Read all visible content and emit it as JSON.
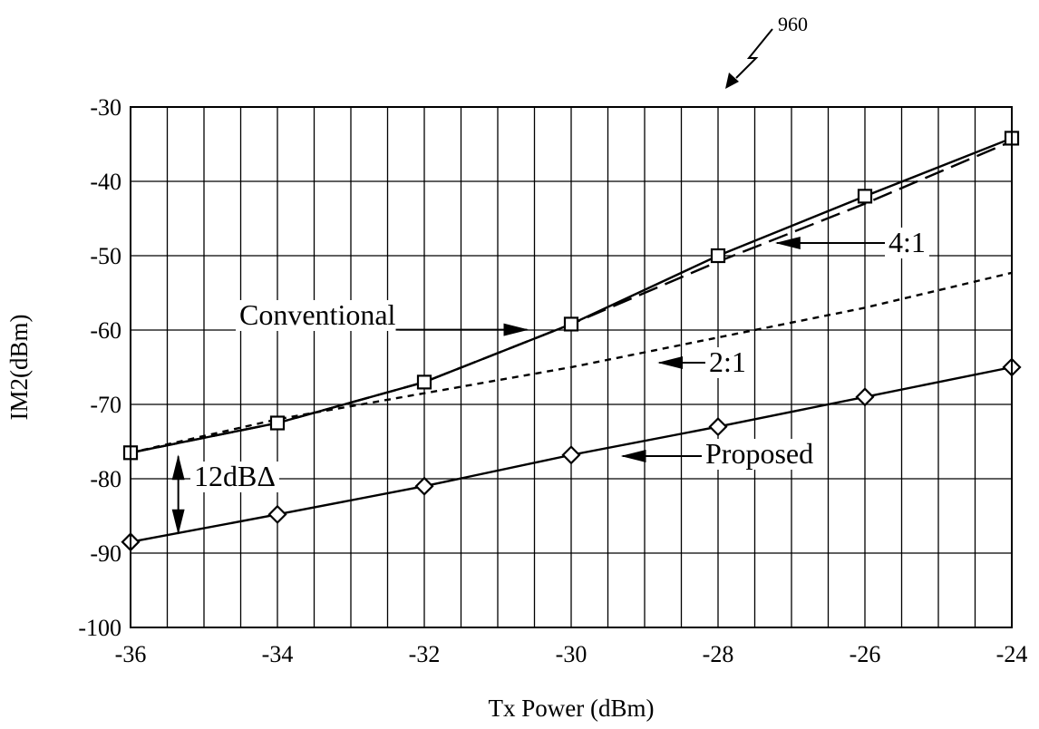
{
  "chart_data": {
    "type": "line",
    "reference_number": "960",
    "xlabel": "Tx Power (dBm)",
    "ylabel": "IM2(dBm)",
    "xlim": [
      -36,
      -24
    ],
    "ylim": [
      -100,
      -30
    ],
    "x_ticks": [
      -36,
      -34,
      -32,
      -30,
      -28,
      -26,
      -24
    ],
    "y_ticks": [
      -30,
      -40,
      -50,
      -60,
      -70,
      -80,
      -90,
      -100
    ],
    "x_minor_step": 0.5,
    "y_major_step": 10,
    "grid": true,
    "series": [
      {
        "name": "Conventional",
        "style": "solid",
        "marker": "square",
        "x": [
          -36,
          -34,
          -32,
          -30,
          -28,
          -26,
          -24
        ],
        "y": [
          -76.5,
          -72.5,
          -67,
          -59.2,
          -50,
          -42,
          -34.2
        ]
      },
      {
        "name": "4:1",
        "style": "long-dash",
        "marker": "none",
        "x": [
          -36,
          -34,
          -32,
          -30,
          -28,
          -26,
          -24
        ],
        "y": [
          -76.5,
          -72.5,
          -67,
          -59.2,
          -50.8,
          -43,
          -34.6
        ]
      },
      {
        "name": "2:1",
        "style": "short-dash",
        "marker": "none",
        "x": [
          -36,
          -34,
          -32,
          -30,
          -28,
          -26,
          -24
        ],
        "y": [
          -76.5,
          -72.0,
          -68.5,
          -65,
          -61,
          -57,
          -52.3
        ]
      },
      {
        "name": "Proposed",
        "style": "solid",
        "marker": "diamond",
        "x": [
          -36,
          -34,
          -32,
          -30,
          -28,
          -26,
          -24
        ],
        "y": [
          -88.5,
          -84.8,
          -81,
          -76.8,
          -73,
          -69,
          -65
        ]
      }
    ],
    "annotations": [
      {
        "text": "Conventional",
        "target_series": "Conventional",
        "target": [
          -30.6,
          -60.2
        ]
      },
      {
        "text": "4:1",
        "target_series": "4:1",
        "target": [
          -27.2,
          -48.9
        ]
      },
      {
        "text": "2:1",
        "target_series": "2:1",
        "target": [
          -28.8,
          -64.5
        ]
      },
      {
        "text": "Proposed",
        "target_series": "Proposed",
        "target": [
          -29.3,
          -77.3
        ]
      },
      {
        "text": "12dBΔ",
        "span_x": -35.35,
        "span_y": [
          -76.5,
          -88.5
        ]
      }
    ]
  }
}
